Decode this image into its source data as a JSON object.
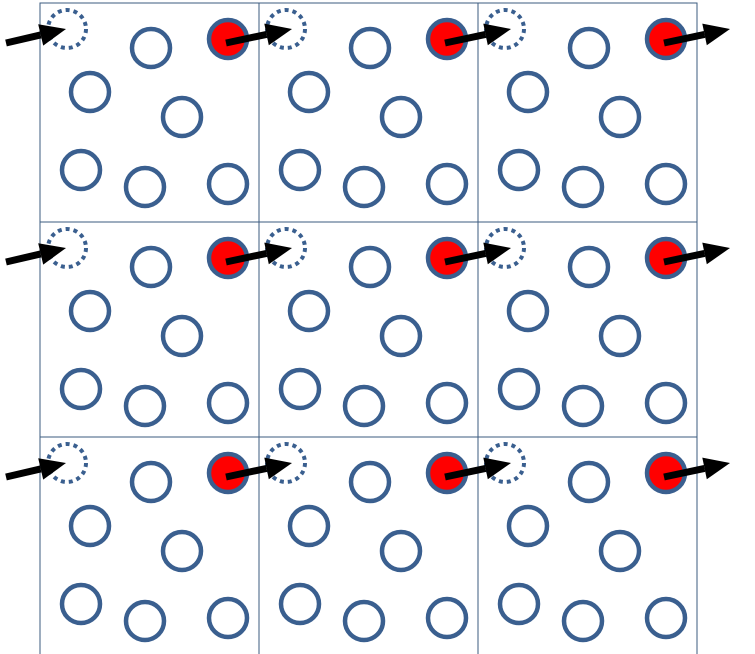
{
  "diagram": {
    "colors": {
      "background": "#ffffff",
      "grid_line": "#3b5b7f",
      "ring": "#3a5f8f",
      "dotted_ring": "#3a5f8f",
      "particle_fill": "#ff0000",
      "arrow": "#000000"
    },
    "grid": {
      "rows": 3,
      "columns": 3
    },
    "cell_content": {
      "solid_rings": 6,
      "dotted_rings": 1,
      "highlighted_particles": 1,
      "entering_arrow": true,
      "exiting_arrow": true
    },
    "icons": {
      "ring": "hollow-circle-icon",
      "dotted_ring": "dotted-circle-icon",
      "particle": "red-filled-circle-icon",
      "arrow": "black-arrow-icon"
    }
  }
}
